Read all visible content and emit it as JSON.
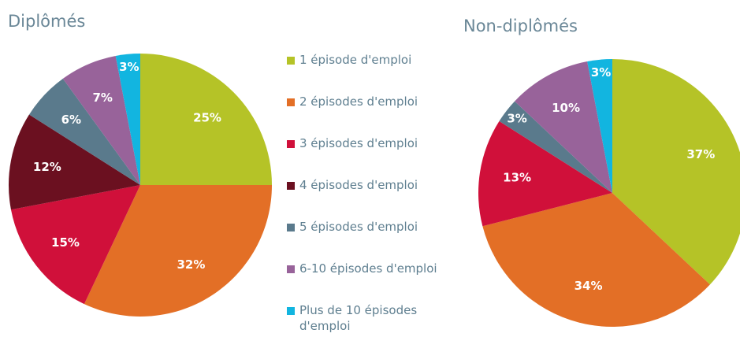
{
  "chart_data": [
    {
      "type": "pie",
      "title": "Diplômés",
      "categories": [
        "1 épisode d'emploi",
        "2 épisodes d'emploi",
        "3 épisodes d'emploi",
        "4 épisodes d'emploi",
        "5 épisodes d'emploi",
        "6-10 épisodes d'emploi",
        "Plus de 10 épisodes d'emploi"
      ],
      "values": [
        25,
        32,
        15,
        12,
        6,
        7,
        3
      ],
      "value_labels": [
        "25%",
        "32%",
        "15%",
        "12%",
        "6%",
        "7%",
        "3%"
      ],
      "colors": [
        "#b5c327",
        "#e36f26",
        "#d0103a",
        "#6b1020",
        "#5a7a8c",
        "#98639a",
        "#12b5e0"
      ],
      "legend": "center"
    },
    {
      "type": "pie",
      "title": "Non-diplômés",
      "categories": [
        "1 épisode d'emploi",
        "2 épisodes d'emploi",
        "3 épisodes d'emploi",
        "5 épisodes d'emploi",
        "6-10 épisodes d'emploi",
        "Plus de 10 épisodes d'emploi"
      ],
      "values": [
        37,
        34,
        13,
        3,
        10,
        3
      ],
      "value_labels": [
        "37%",
        "34%",
        "13%",
        "3%",
        "10%",
        "3%"
      ],
      "colors": [
        "#b5c327",
        "#e36f26",
        "#d0103a",
        "#5a7a8c",
        "#98639a",
        "#12b5e0"
      ]
    }
  ]
}
